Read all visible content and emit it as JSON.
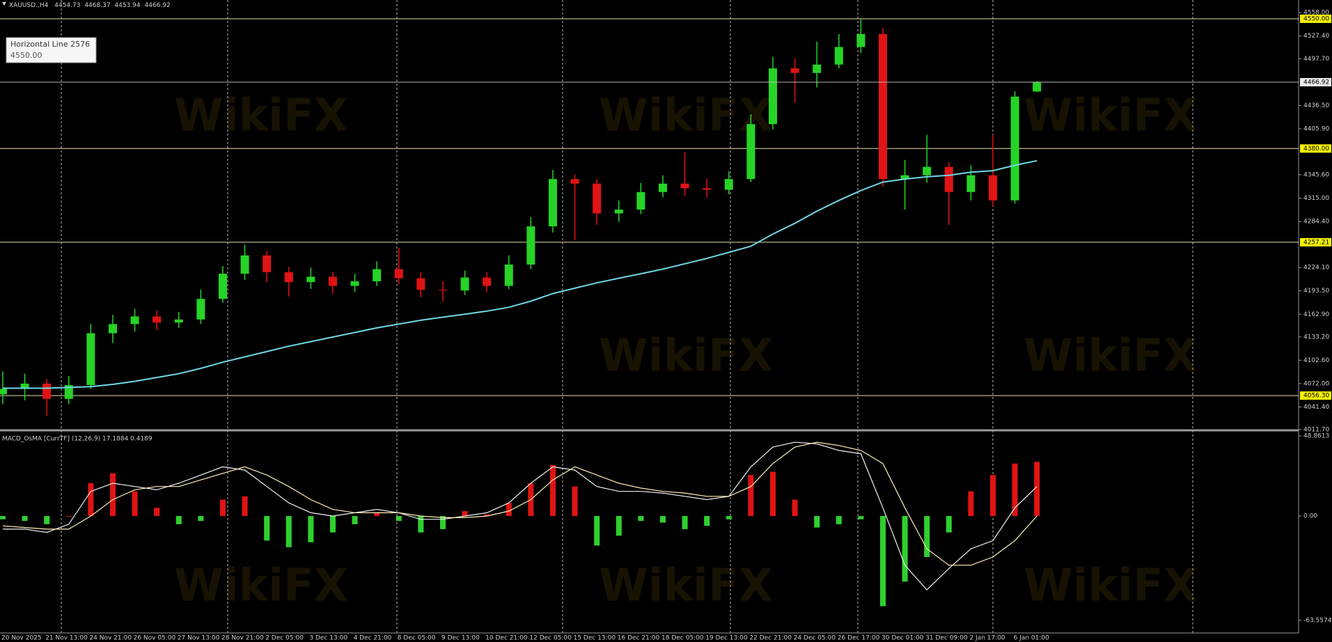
{
  "watermark": "WikiFX",
  "chart_data": [
    {
      "type": "candlestick",
      "title": "XAUUSD.,H4",
      "tooltip_title": "Horizontal Line 2576",
      "up_color": "#27d327",
      "down_color": "#e01414",
      "categories": [
        "20 Nov 2025",
        null,
        "21 Nov 13:00",
        null,
        "24 Nov 21:00",
        null,
        "26 Nov 05:00",
        null,
        "27 Nov 13:00",
        null,
        "28 Nov 21:00",
        null,
        "2 Dec 05:00",
        null,
        "3 Dec 13:00",
        null,
        "4 Dec 21:00",
        null,
        "8 Dec 05:00",
        null,
        "9 Dec 13:00",
        null,
        "10 Dec 21:00",
        null,
        "12 Dec 05:00",
        null,
        "15 Dec 13:00",
        null,
        "16 Dec 21:00",
        null,
        "18 Dec 05:00",
        null,
        "19 Dec 13:00",
        null,
        "22 Dec 21:00",
        null,
        "24 Dec 05:00",
        null,
        "26 Dec 17:00",
        null,
        "30 Dec 01:00",
        null,
        "31 Dec 09:00",
        null,
        "2 Jan 17:00",
        null,
        "6 Jan 01:00",
        null
      ],
      "open": [
        4058,
        4065,
        4072,
        4052,
        4070,
        4138,
        4150,
        4160,
        4152,
        4156,
        4183,
        4216,
        4240,
        4218,
        4205,
        4212,
        4200,
        4206,
        4222,
        4210,
        4195,
        4194,
        4211,
        4200,
        4228,
        4278,
        4340,
        4334,
        4295,
        4300,
        4323,
        4334,
        4328,
        4326,
        4340,
        4412,
        4485,
        4479,
        4490,
        4513,
        4530,
        4340,
        4345,
        4356,
        4323,
        4345,
        4312,
        4454.73
      ],
      "high": [
        4088,
        4085,
        4078,
        4082,
        4150,
        4162,
        4170,
        4168,
        4166,
        4195,
        4226,
        4254,
        4246,
        4225,
        4224,
        4218,
        4216,
        4232,
        4250,
        4218,
        4206,
        4220,
        4218,
        4240,
        4290,
        4352,
        4346,
        4340,
        4312,
        4335,
        4345,
        4375,
        4340,
        4350,
        4425,
        4500,
        4498,
        4520,
        4530,
        4550,
        4538,
        4365,
        4398,
        4362,
        4358,
        4398,
        4455,
        4468.37
      ],
      "low": [
        4045,
        4050,
        4030,
        4045,
        4065,
        4125,
        4140,
        4142,
        4145,
        4150,
        4178,
        4208,
        4205,
        4186,
        4196,
        4190,
        4192,
        4200,
        4202,
        4185,
        4180,
        4188,
        4192,
        4196,
        4222,
        4270,
        4260,
        4280,
        4284,
        4294,
        4316,
        4318,
        4316,
        4320,
        4336,
        4405,
        4440,
        4460,
        4485,
        4505,
        4330,
        4300,
        4335,
        4280,
        4312,
        4305,
        4308,
        4453.94
      ],
      "close": [
        4065,
        4072,
        4052,
        4070,
        4138,
        4150,
        4160,
        4152,
        4156,
        4183,
        4216,
        4240,
        4218,
        4205,
        4212,
        4200,
        4206,
        4222,
        4210,
        4195,
        4194,
        4211,
        4200,
        4228,
        4278,
        4340,
        4334,
        4295,
        4300,
        4323,
        4334,
        4328,
        4326,
        4340,
        4412,
        4485,
        4479,
        4490,
        4513,
        4530,
        4340,
        4345,
        4356,
        4323,
        4345,
        4312,
        4448,
        4466.92
      ],
      "ma": {
        "color": "#6fd8e6",
        "values": [
          4066,
          4066,
          4066,
          4067,
          4068,
          4071,
          4075,
          4080,
          4085,
          4092,
          4100,
          4107,
          4114,
          4121,
          4127,
          4133,
          4139,
          4145,
          4150,
          4155,
          4159,
          4163,
          4167,
          4172,
          4180,
          4190,
          4197,
          4204,
          4210,
          4216,
          4222,
          4229,
          4236,
          4244,
          4252,
          4268,
          4282,
          4298,
          4312,
          4325,
          4336,
          4340,
          4343,
          4345,
          4349,
          4351,
          4358,
          4364
        ]
      },
      "ylim": [
        4011.7,
        4574.6
      ],
      "yticks": [
        {
          "value": 4558,
          "label": "4558.00"
        },
        {
          "value": 4527.4,
          "label": "4527.40"
        },
        {
          "value": 4497.7,
          "label": "4497.70"
        },
        {
          "value": 4436.5,
          "label": "4436.50"
        },
        {
          "value": 4405.9,
          "label": "4405.90"
        },
        {
          "value": 4345.6,
          "label": "4345.60"
        },
        {
          "value": 4315,
          "label": "4315.00"
        },
        {
          "value": 4284.4,
          "label": "4284.40"
        },
        {
          "value": 4224.1,
          "label": "4224.10"
        },
        {
          "value": 4193.5,
          "label": "4193.50"
        },
        {
          "value": 4162.9,
          "label": "4162.90"
        },
        {
          "value": 4133.2,
          "label": "4133.20"
        },
        {
          "value": 4102.6,
          "label": "4102.60"
        },
        {
          "value": 4072,
          "label": "4072.00"
        },
        {
          "value": 4041.4,
          "label": "4041.40"
        },
        {
          "value": 4011.7,
          "label": "4011.70"
        }
      ],
      "hline_color": "#e9e2a6",
      "hlines": [
        {
          "value": 4550,
          "label": "4550.00"
        },
        {
          "value": 4380,
          "label": "4380.00"
        },
        4257.21,
        {
          "value": 4056.3,
          "label": "4056.30"
        }
      ]
    },
    {
      "type": "macd",
      "title": "MACD_OsMA [CurrTF] (12,26,9) 17.1884 0.4189",
      "histogram": {
        "pos_color": "#e01414",
        "neg_color": "#2fd02f",
        "values": [
          -2,
          -3,
          -5,
          0,
          20,
          26,
          15,
          5,
          -5,
          -3,
          10,
          12,
          -15,
          -19,
          -16,
          -10,
          -5,
          2,
          -3,
          -10,
          -8,
          3,
          1,
          8,
          20,
          31,
          18,
          -18,
          -12,
          -3,
          -4,
          -8,
          -6,
          -2,
          25,
          27,
          10,
          -7,
          -5,
          -2,
          -55,
          -40,
          -25,
          -10,
          15,
          25,
          32,
          33
        ]
      },
      "lines": [
        {
          "color": "#f2f2f2",
          "values": [
            -8,
            -8,
            -10,
            -5,
            15,
            20,
            18,
            16,
            20,
            25,
            30,
            28,
            18,
            8,
            2,
            0,
            2,
            4,
            2,
            -2,
            -2,
            0,
            2,
            8,
            20,
            30,
            28,
            18,
            15,
            15,
            14,
            12,
            10,
            12,
            30,
            42,
            45,
            44,
            40,
            38,
            5,
            -30,
            -45,
            -32,
            -20,
            -15,
            5,
            18
          ]
        },
        {
          "color": "#fff1b8",
          "values": [
            -6,
            -7,
            -8,
            -8,
            0,
            10,
            16,
            18,
            18,
            22,
            26,
            30,
            25,
            18,
            10,
            4,
            2,
            2,
            2,
            0,
            -1,
            -1,
            0,
            3,
            10,
            22,
            30,
            25,
            20,
            17,
            15,
            14,
            12,
            12,
            18,
            32,
            42,
            45,
            43,
            40,
            32,
            5,
            -20,
            -30,
            -30,
            -25,
            -15,
            0
          ]
        }
      ],
      "ylim": [
        -71.3,
        51.4
      ],
      "yticks": [
        48.8613,
        {
          "value": 0,
          "label": "0.00"
        },
        -63.5574
      ]
    }
  ]
}
